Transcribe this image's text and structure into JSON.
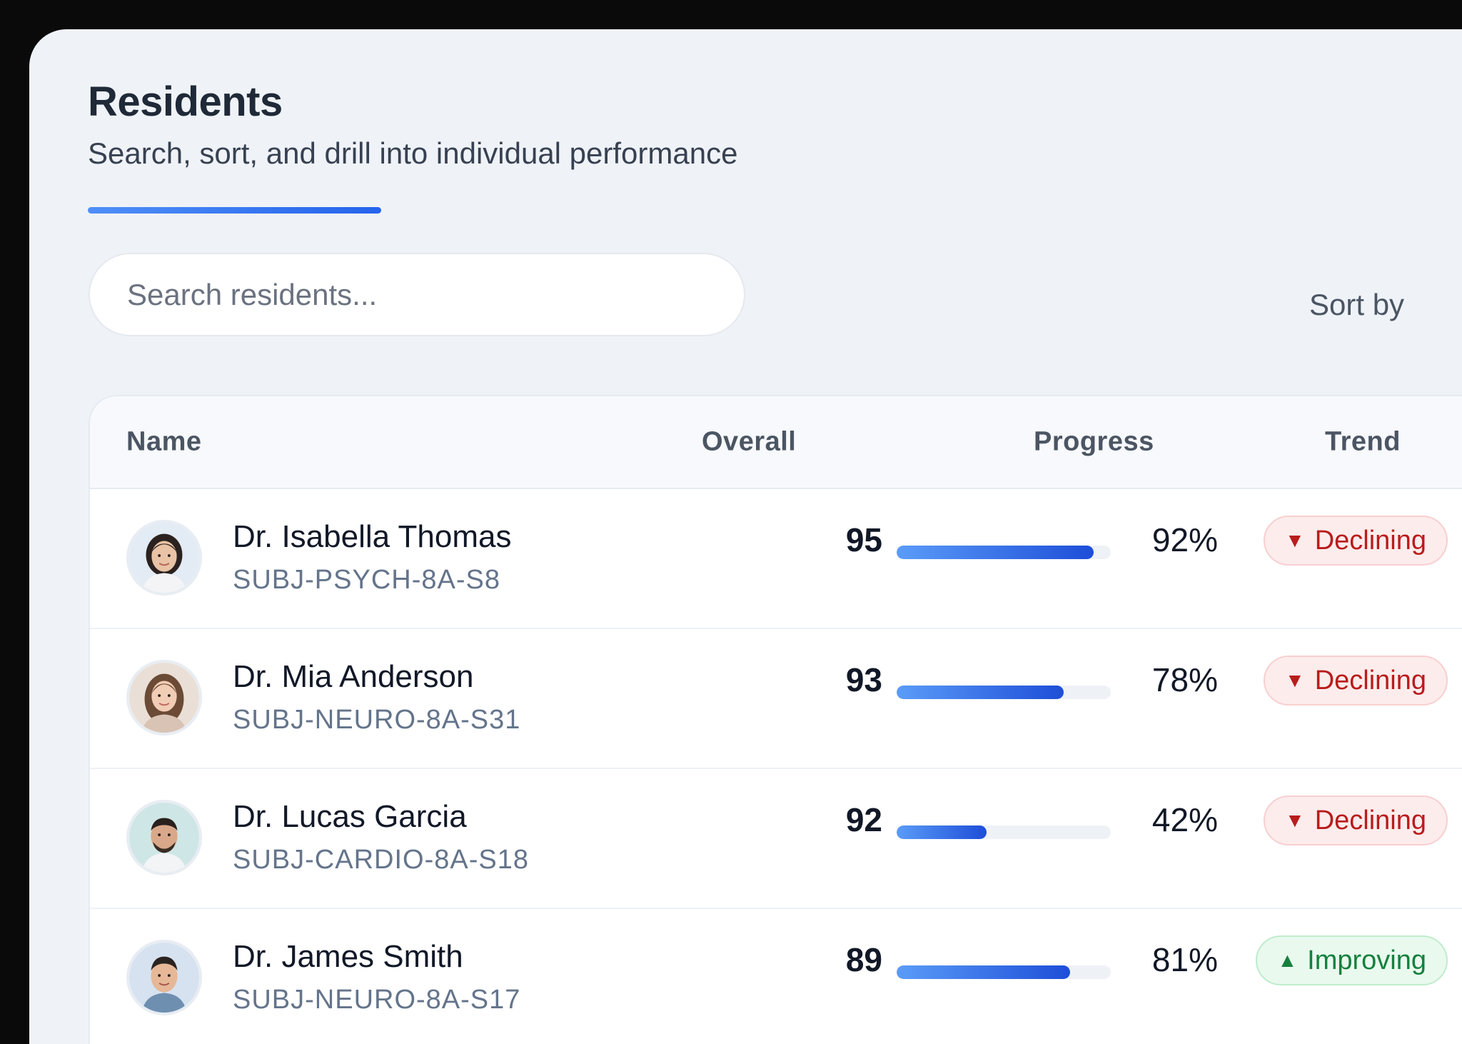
{
  "header": {
    "title": "Residents",
    "subtitle": "Search, sort, and drill into individual performance"
  },
  "toolbar": {
    "search_placeholder": "Search residents...",
    "sort_label": "Sort by"
  },
  "table": {
    "columns": {
      "name": "Name",
      "overall": "Overall",
      "progress": "Progress",
      "trend": "Trend"
    },
    "rows": [
      {
        "name": "Dr. Isabella Thomas",
        "code": "SUBJ-PSYCH-8A-S8",
        "overall": "95",
        "progress": 92,
        "progress_label": "92%",
        "trend": "Declining",
        "trend_dir": "down"
      },
      {
        "name": "Dr. Mia Anderson",
        "code": "SUBJ-NEURO-8A-S31",
        "overall": "93",
        "progress": 78,
        "progress_label": "78%",
        "trend": "Declining",
        "trend_dir": "down"
      },
      {
        "name": "Dr. Lucas Garcia",
        "code": "SUBJ-CARDIO-8A-S18",
        "overall": "92",
        "progress": 42,
        "progress_label": "42%",
        "trend": "Declining",
        "trend_dir": "down"
      },
      {
        "name": "Dr. James Smith",
        "code": "SUBJ-NEURO-8A-S17",
        "overall": "89",
        "progress": 81,
        "progress_label": "81%",
        "trend": "Improving",
        "trend_dir": "up"
      }
    ]
  },
  "colors": {
    "accent": "#2563eb",
    "declining": "#b91c1c",
    "improving": "#15803d"
  },
  "icons": {
    "declining": "triangle-down-icon",
    "improving": "triangle-up-icon"
  }
}
